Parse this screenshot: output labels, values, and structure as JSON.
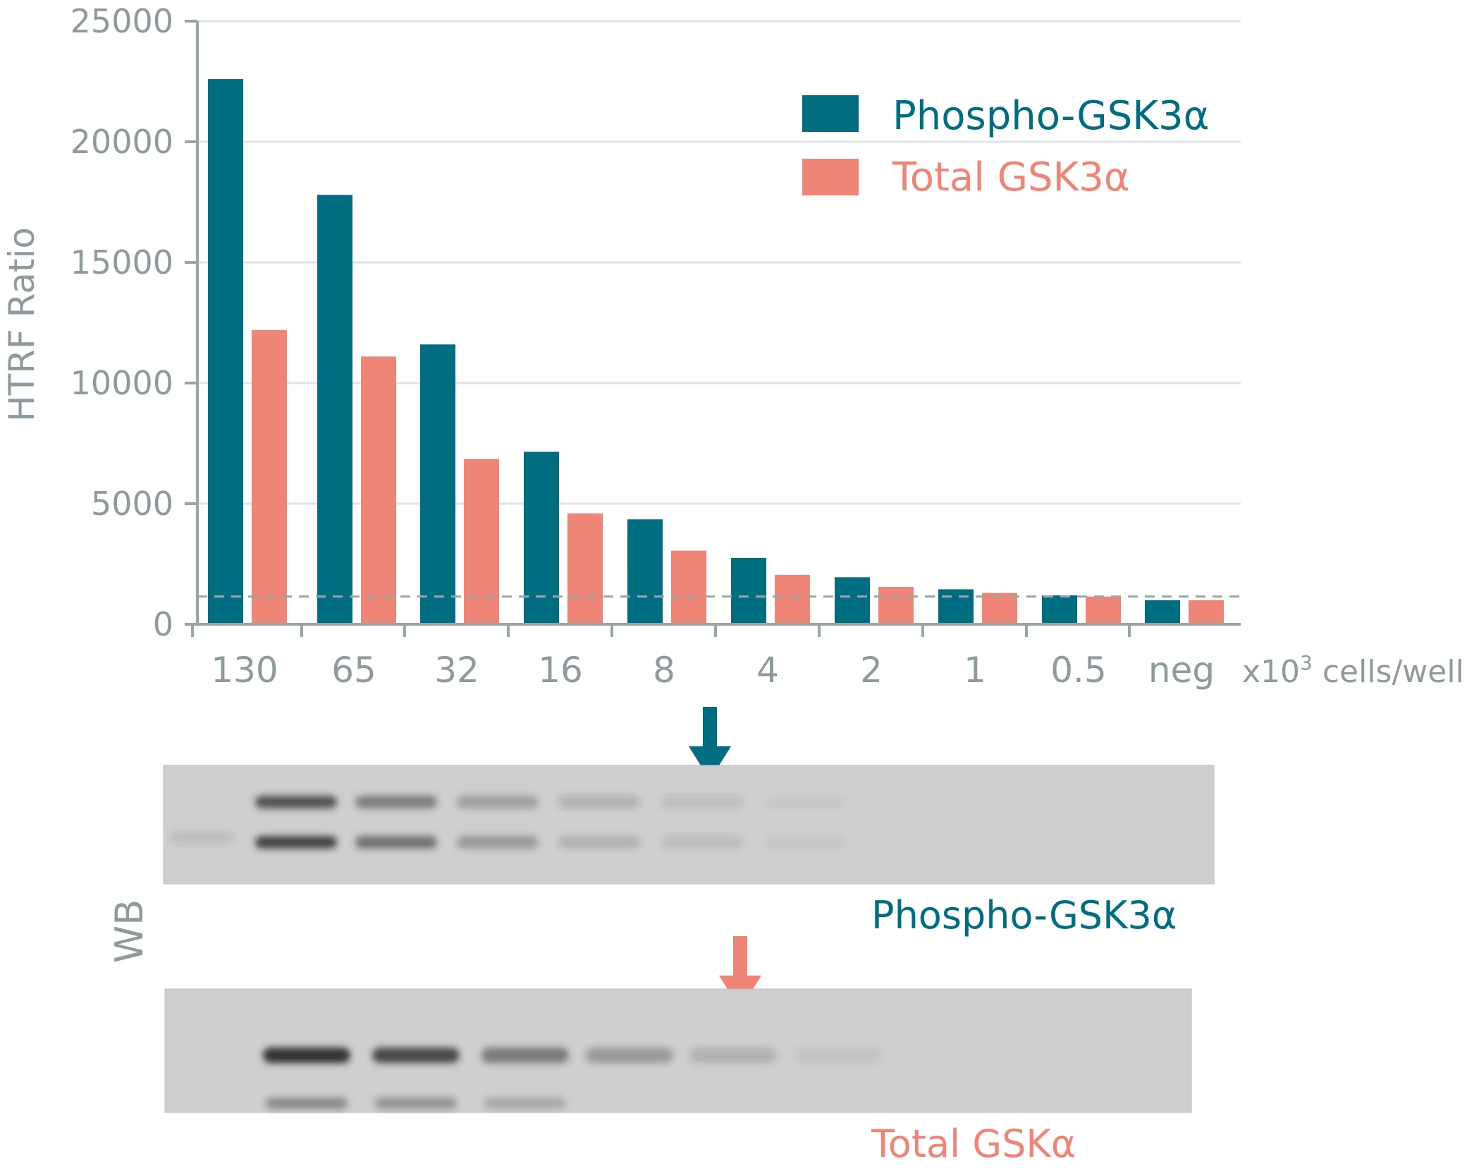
{
  "colors": {
    "phospho": "#006e80",
    "total": "#ef8576",
    "axis_text": "#8e9a9b"
  },
  "chart_data": {
    "type": "bar",
    "ylabel": "HTRF Ratio",
    "xunit_prefix": "x10",
    "xunit_exp": "3",
    "xunit_suffix": " cells/well",
    "ylim": [
      0,
      25000
    ],
    "yticks": [
      0,
      5000,
      10000,
      15000,
      20000,
      25000
    ],
    "ytick_labels": [
      "0",
      "5000",
      "10000",
      "15000",
      "20000",
      "25000"
    ],
    "grid": true,
    "legend_position": "top-right",
    "categories": [
      "130",
      "65",
      "32",
      "16",
      "8",
      "4",
      "2",
      "1",
      "0.5",
      "neg"
    ],
    "series": [
      {
        "name": "Phospho-GSK3α",
        "color": "#006e80",
        "values": [
          22600,
          17800,
          11600,
          7150,
          4350,
          2750,
          1950,
          1450,
          1200,
          1000
        ]
      },
      {
        "name": "Total GSK3α",
        "color": "#ef8576",
        "values": [
          12200,
          11100,
          6850,
          4600,
          3050,
          2050,
          1550,
          1300,
          1150,
          1000
        ]
      }
    ],
    "threshold_value": 1150
  },
  "western_blot": {
    "side_label": "WB",
    "phospho_label": "Phospho-GSK3α",
    "total_label": "Total GSKα",
    "phospho_band_intensity": [
      0.12,
      0.9,
      0.6,
      0.35,
      0.2,
      0.12,
      0.04,
      0,
      0,
      0
    ],
    "total_band_intensity": [
      0,
      1.0,
      0.85,
      0.55,
      0.35,
      0.2,
      0.08,
      0,
      0,
      0
    ]
  }
}
